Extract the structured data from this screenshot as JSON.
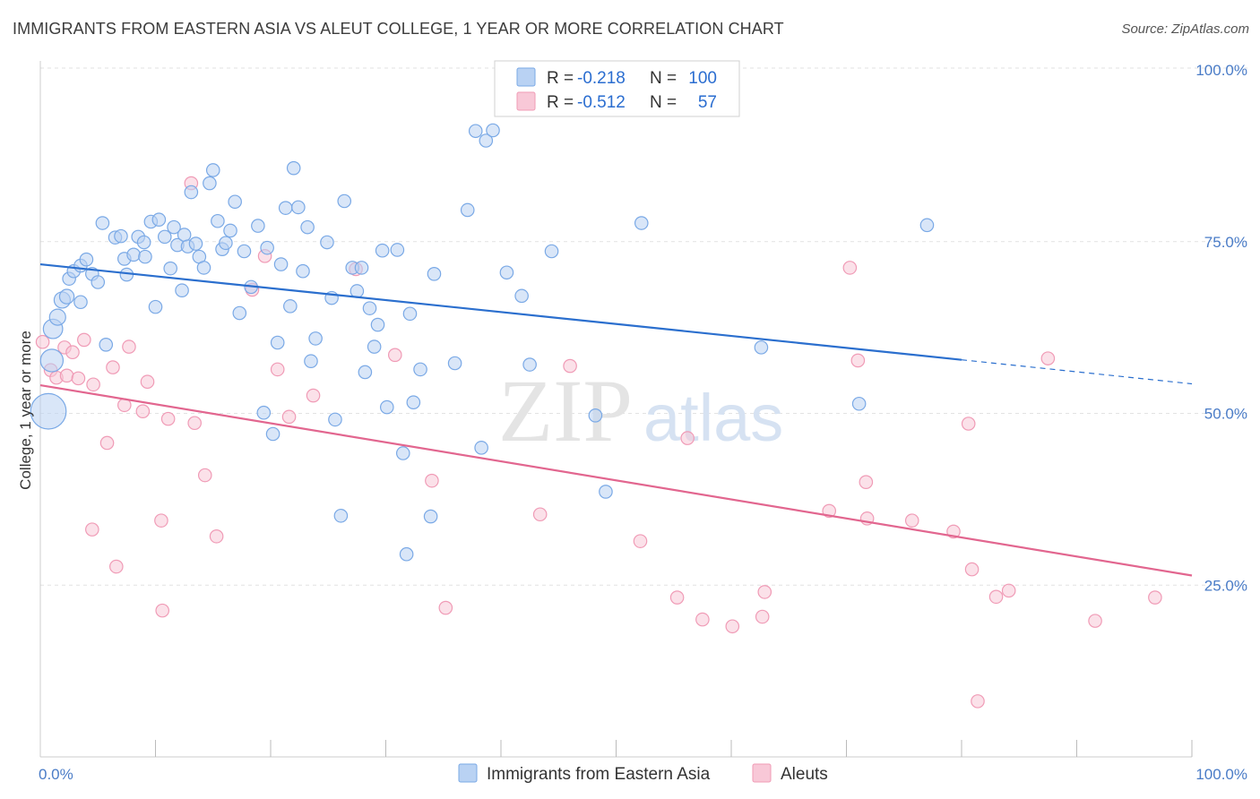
{
  "title": "IMMIGRANTS FROM EASTERN ASIA VS ALEUT COLLEGE, 1 YEAR OR MORE CORRELATION CHART",
  "source": "Source: ZipAtlas.com",
  "watermark": {
    "zip": "ZIP",
    "atlas": "atlas"
  },
  "colors": {
    "blue": "#7aa9e6",
    "blue_line": "#2b6fce",
    "pink": "#f09bb6",
    "pink_line": "#e2668f",
    "tick": "#4a7cc7"
  },
  "legend": {
    "rows": [
      {
        "r_label": "R =",
        "r_value": "-0.218",
        "n_label": "N =",
        "n_value": "100"
      },
      {
        "r_label": "R =",
        "r_value": "-0.512",
        "n_label": "N =",
        "n_value": "57"
      }
    ]
  },
  "bottom_legend": [
    "Immigrants from Eastern Asia",
    "Aleuts"
  ],
  "chart_data": {
    "type": "scatter",
    "xlabel": "",
    "ylabel": "College, 1 year or more",
    "xlim": [
      0,
      100
    ],
    "ylim": [
      0,
      100
    ],
    "x_tick_labels": [
      {
        "value": 0,
        "label": "0.0%"
      },
      {
        "value": 100,
        "label": "100.0%"
      }
    ],
    "y_tick_labels": [
      {
        "value": 25,
        "label": "25.0%"
      },
      {
        "value": 50,
        "label": "50.0%"
      },
      {
        "value": 75,
        "label": "75.0%"
      },
      {
        "value": 100,
        "label": "100.0%"
      }
    ],
    "grid": "horizontal dashed",
    "legend_position": "top-center",
    "series": [
      {
        "name": "Immigrants from Eastern Asia",
        "color": "#7aa9e6",
        "trend": {
          "x": [
            0,
            80
          ],
          "y": [
            71.7,
            57.8
          ],
          "dashed_to": [
            100,
            54.3
          ]
        },
        "points": [
          [
            0.7,
            50.3,
            2.2
          ],
          [
            1.0,
            57.7,
            1.4
          ],
          [
            1.1,
            62.3,
            1.2
          ],
          [
            1.5,
            64.0,
            1.0
          ],
          [
            1.9,
            66.5,
            1.0
          ],
          [
            2.3,
            67.0,
            0.9
          ],
          [
            2.5,
            69.6,
            0.8
          ],
          [
            2.9,
            70.7,
            0.8
          ],
          [
            3.5,
            71.5,
            0.8
          ],
          [
            3.5,
            66.2,
            0.8
          ],
          [
            4.0,
            72.4,
            0.8
          ],
          [
            4.5,
            70.3,
            0.8
          ],
          [
            5.0,
            69.1,
            0.8
          ],
          [
            5.4,
            77.7,
            0.8
          ],
          [
            5.7,
            60.0,
            0.8
          ],
          [
            6.5,
            75.6,
            0.8
          ],
          [
            7.0,
            75.8,
            0.8
          ],
          [
            7.3,
            72.5,
            0.8
          ],
          [
            7.5,
            70.2,
            0.8
          ],
          [
            8.1,
            73.1,
            0.8
          ],
          [
            8.5,
            75.7,
            0.8
          ],
          [
            9.0,
            74.9,
            0.8
          ],
          [
            9.1,
            72.8,
            0.8
          ],
          [
            9.6,
            77.9,
            0.8
          ],
          [
            10.0,
            65.5,
            0.8
          ],
          [
            10.3,
            78.2,
            0.8
          ],
          [
            10.8,
            75.7,
            0.8
          ],
          [
            11.3,
            71.1,
            0.8
          ],
          [
            11.6,
            77.1,
            0.8
          ],
          [
            11.9,
            74.5,
            0.8
          ],
          [
            12.3,
            67.9,
            0.8
          ],
          [
            12.5,
            76.0,
            0.8
          ],
          [
            12.8,
            74.3,
            0.8
          ],
          [
            13.1,
            82.2,
            0.8
          ],
          [
            13.5,
            74.7,
            0.8
          ],
          [
            13.8,
            72.8,
            0.8
          ],
          [
            14.2,
            71.2,
            0.8
          ],
          [
            14.7,
            83.5,
            0.8
          ],
          [
            15.0,
            85.4,
            0.8
          ],
          [
            15.4,
            78.0,
            0.8
          ],
          [
            15.8,
            73.9,
            0.8
          ],
          [
            16.1,
            74.8,
            0.8
          ],
          [
            16.5,
            76.6,
            0.8
          ],
          [
            16.9,
            80.8,
            0.8
          ],
          [
            17.3,
            64.6,
            0.8
          ],
          [
            17.7,
            73.6,
            0.8
          ],
          [
            18.3,
            68.4,
            0.8
          ],
          [
            18.9,
            77.3,
            0.8
          ],
          [
            19.4,
            50.1,
            0.8
          ],
          [
            19.7,
            74.1,
            0.8
          ],
          [
            20.2,
            47.0,
            0.8
          ],
          [
            20.6,
            60.3,
            0.8
          ],
          [
            20.9,
            71.7,
            0.8
          ],
          [
            21.3,
            79.9,
            0.8
          ],
          [
            21.7,
            65.6,
            0.8
          ],
          [
            22.0,
            85.7,
            0.8
          ],
          [
            22.4,
            80.0,
            0.8
          ],
          [
            22.8,
            70.7,
            0.8
          ],
          [
            23.2,
            77.1,
            0.8
          ],
          [
            23.5,
            57.6,
            0.8
          ],
          [
            23.9,
            60.9,
            0.8
          ],
          [
            24.9,
            74.9,
            0.8
          ],
          [
            25.3,
            66.8,
            0.8
          ],
          [
            25.6,
            49.1,
            0.8
          ],
          [
            26.1,
            35.1,
            0.8
          ],
          [
            26.4,
            80.9,
            0.8
          ],
          [
            27.1,
            71.2,
            0.8
          ],
          [
            27.5,
            67.8,
            0.8
          ],
          [
            27.9,
            71.2,
            0.8
          ],
          [
            28.2,
            56.0,
            0.8
          ],
          [
            28.6,
            65.3,
            0.8
          ],
          [
            29.0,
            59.7,
            0.8
          ],
          [
            29.3,
            62.9,
            0.8
          ],
          [
            29.7,
            73.7,
            0.8
          ],
          [
            30.1,
            50.9,
            0.8
          ],
          [
            31.0,
            73.8,
            0.8
          ],
          [
            31.5,
            44.2,
            0.8
          ],
          [
            31.8,
            29.5,
            0.8
          ],
          [
            32.1,
            64.5,
            0.8
          ],
          [
            32.4,
            51.6,
            0.8
          ],
          [
            33.0,
            56.4,
            0.8
          ],
          [
            33.9,
            35.0,
            0.8
          ],
          [
            34.2,
            70.3,
            0.8
          ],
          [
            36.0,
            57.3,
            0.8
          ],
          [
            37.1,
            79.6,
            0.8
          ],
          [
            37.8,
            91.1,
            0.8
          ],
          [
            38.3,
            45.0,
            0.8
          ],
          [
            38.7,
            89.7,
            0.8
          ],
          [
            39.3,
            91.2,
            0.8
          ],
          [
            40.5,
            70.5,
            0.8
          ],
          [
            41.8,
            67.1,
            0.8
          ],
          [
            42.5,
            57.1,
            0.8
          ],
          [
            44.4,
            73.6,
            0.8
          ],
          [
            48.2,
            49.7,
            0.8
          ],
          [
            49.1,
            38.6,
            0.8
          ],
          [
            52.2,
            77.7,
            0.8
          ],
          [
            62.6,
            59.6,
            0.8
          ],
          [
            71.1,
            51.4,
            0.8
          ],
          [
            77.0,
            77.4,
            0.8
          ],
          [
            21.3,
            81.0,
            0.01
          ]
        ]
      },
      {
        "name": "Aleuts",
        "color": "#f09bb6",
        "trend": {
          "x": [
            0,
            100
          ],
          "y": [
            54.1,
            26.4
          ]
        },
        "points": [
          [
            0.2,
            60.4,
            0.8
          ],
          [
            0.9,
            56.3,
            0.8
          ],
          [
            1.4,
            55.2,
            0.8
          ],
          [
            2.1,
            59.6,
            0.8
          ],
          [
            2.3,
            55.5,
            0.8
          ],
          [
            2.8,
            58.9,
            0.8
          ],
          [
            3.3,
            55.1,
            0.8
          ],
          [
            3.8,
            60.7,
            0.8
          ],
          [
            4.6,
            54.2,
            0.8
          ],
          [
            4.5,
            33.1,
            0.8
          ],
          [
            5.8,
            45.7,
            0.8
          ],
          [
            6.3,
            56.7,
            0.8
          ],
          [
            6.6,
            27.7,
            0.8
          ],
          [
            7.3,
            51.2,
            0.8
          ],
          [
            7.7,
            59.7,
            0.8
          ],
          [
            8.9,
            50.3,
            0.8
          ],
          [
            9.3,
            54.6,
            0.8
          ],
          [
            10.5,
            34.4,
            0.8
          ],
          [
            10.6,
            21.3,
            0.8
          ],
          [
            11.1,
            49.2,
            0.8
          ],
          [
            13.1,
            83.5,
            0.8
          ],
          [
            13.4,
            48.6,
            0.8
          ],
          [
            14.3,
            41.0,
            0.8
          ],
          [
            15.3,
            32.1,
            0.8
          ],
          [
            18.4,
            68.0,
            0.8
          ],
          [
            19.5,
            72.9,
            0.8
          ],
          [
            20.6,
            56.4,
            0.8
          ],
          [
            21.6,
            49.5,
            0.8
          ],
          [
            23.7,
            52.6,
            0.8
          ],
          [
            27.4,
            71.0,
            0.8
          ],
          [
            30.8,
            58.5,
            0.8
          ],
          [
            34.0,
            40.2,
            0.8
          ],
          [
            35.2,
            21.7,
            0.8
          ],
          [
            43.4,
            35.3,
            0.8
          ],
          [
            46.0,
            56.9,
            0.8
          ],
          [
            52.1,
            31.4,
            0.8
          ],
          [
            55.3,
            23.2,
            0.8
          ],
          [
            56.2,
            46.4,
            0.8
          ],
          [
            57.5,
            20.0,
            0.8
          ],
          [
            60.1,
            19.0,
            0.8
          ],
          [
            62.7,
            20.4,
            0.8
          ],
          [
            62.9,
            24.0,
            0.8
          ],
          [
            68.5,
            35.8,
            0.8
          ],
          [
            70.3,
            71.2,
            0.8
          ],
          [
            71.0,
            57.7,
            0.8
          ],
          [
            71.7,
            40.0,
            0.8
          ],
          [
            71.8,
            34.7,
            0.8
          ],
          [
            75.7,
            34.4,
            0.8
          ],
          [
            79.3,
            32.8,
            0.8
          ],
          [
            80.6,
            48.5,
            0.8
          ],
          [
            80.9,
            27.3,
            0.8
          ],
          [
            83.0,
            23.3,
            0.8
          ],
          [
            84.1,
            24.2,
            0.8
          ],
          [
            87.5,
            58.0,
            0.8
          ],
          [
            91.6,
            19.8,
            0.8
          ],
          [
            96.8,
            23.2,
            0.8
          ],
          [
            81.4,
            8.1,
            0.8
          ]
        ]
      }
    ]
  }
}
